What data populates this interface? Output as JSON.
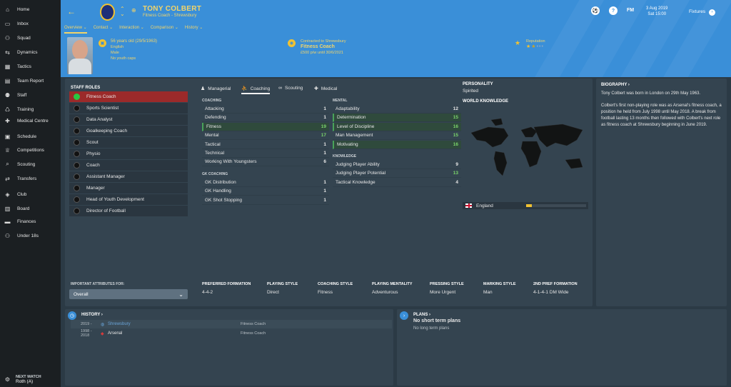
{
  "sidebar": {
    "items": [
      {
        "label": "Home",
        "icon": "home-icon",
        "glyph": "⌂"
      },
      {
        "label": "Inbox",
        "icon": "inbox-icon",
        "glyph": "▭"
      },
      {
        "label": "Squad",
        "icon": "squad-icon",
        "glyph": "⚇"
      },
      {
        "label": "Dynamics",
        "icon": "dynamics-icon",
        "glyph": "⇆"
      },
      {
        "label": "Tactics",
        "icon": "tactics-icon",
        "glyph": "▦"
      },
      {
        "label": "Team Report",
        "icon": "team-report-icon",
        "glyph": "▤"
      },
      {
        "label": "Staff",
        "icon": "staff-icon",
        "glyph": "⚉"
      },
      {
        "label": "Training",
        "icon": "training-icon",
        "glyph": "♺"
      },
      {
        "label": "Medical Centre",
        "icon": "medical-icon",
        "glyph": "✚"
      },
      {
        "label": "Schedule",
        "icon": "schedule-icon",
        "glyph": "▣"
      },
      {
        "label": "Competitions",
        "icon": "trophy-icon",
        "glyph": "♕"
      },
      {
        "label": "Scouting",
        "icon": "scouting-icon",
        "glyph": "⌕"
      },
      {
        "label": "Transfers",
        "icon": "transfers-icon",
        "glyph": "⇄"
      },
      {
        "label": "Club",
        "icon": "club-icon",
        "glyph": "◈"
      },
      {
        "label": "Board",
        "icon": "board-icon",
        "glyph": "▥"
      },
      {
        "label": "Finances",
        "icon": "finances-icon",
        "glyph": "▬"
      },
      {
        "label": "Under 18s",
        "icon": "under18-icon",
        "glyph": "⚇"
      }
    ],
    "next_match": {
      "label": "NEXT MATCH",
      "value": "Roth (A)"
    }
  },
  "header": {
    "name": "TONY COLBERT",
    "subtitle": "Fitness Coach - Shrewsbury",
    "date": "3 Aug 2019",
    "time": "Sat 15:00",
    "fm_label": "FM",
    "fixtures_label": "Fixtures",
    "tabs": [
      "Overview",
      "Contact",
      "Interaction",
      "Comparison",
      "History"
    ],
    "info": {
      "age": "56 years old (29/5/1963)",
      "nationality": "English",
      "gender": "Male",
      "youth": "No youth caps",
      "contract_line": "Contracted to Shrewsbury",
      "contract_role": "Fitness Coach",
      "wage": "£500 p/w until 30/6/2021",
      "reputation_label": "Reputation",
      "reputation_stars": 1.5
    },
    "accent": "#f1d46a",
    "bg": "#3a8fd8"
  },
  "staff_roles": {
    "title": "STAFF ROLES",
    "items": [
      "Fitness Coach",
      "Sports Scientist",
      "Data Analyst",
      "Goalkeeping Coach",
      "Scout",
      "Physio",
      "Coach",
      "Assistant Manager",
      "Manager",
      "Head of Youth Development",
      "Director of Football"
    ],
    "important_label": "IMPORTANT ATTRIBUTES FOR:",
    "select_value": "Overall"
  },
  "attr_tabs": [
    "Managerial",
    "Coaching",
    "Scouting",
    "Medical"
  ],
  "attributes": {
    "coaching_label": "COACHING",
    "coaching": [
      {
        "name": "Attacking",
        "value": 1
      },
      {
        "name": "Defending",
        "value": 1
      },
      {
        "name": "Fitness",
        "value": 19,
        "hl": true
      },
      {
        "name": "Mental",
        "value": 17
      },
      {
        "name": "Tactical",
        "value": 1
      },
      {
        "name": "Technical",
        "value": 1
      },
      {
        "name": "Working With Youngsters",
        "value": 6
      }
    ],
    "gk_label": "GK COACHING",
    "gk": [
      {
        "name": "GK Distribution",
        "value": 1
      },
      {
        "name": "GK Handling",
        "value": 1
      },
      {
        "name": "GK Shot Stopping",
        "value": 1
      }
    ],
    "mental_label": "MENTAL",
    "mental": [
      {
        "name": "Adaptability",
        "value": 12
      },
      {
        "name": "Determination",
        "value": 15,
        "hl": true
      },
      {
        "name": "Level of Discipline",
        "value": 16,
        "hl": true
      },
      {
        "name": "Man Management",
        "value": 15
      },
      {
        "name": "Motivating",
        "value": 16,
        "hl": true
      }
    ],
    "knowledge_label": "KNOWLEDGE",
    "knowledge": [
      {
        "name": "Judging Player Ability",
        "value": 9
      },
      {
        "name": "Judging Player Potential",
        "value": 13
      },
      {
        "name": "Tactical Knowledge",
        "value": 4
      }
    ]
  },
  "personality": {
    "label": "PERSONALITY",
    "value": "Spirited"
  },
  "world": {
    "label": "WORLD KNOWLEDGE",
    "country": "England",
    "level": 0.05
  },
  "style_strip": [
    {
      "k": "PREFERRED FORMATION",
      "v": "4-4-2"
    },
    {
      "k": "PLAYING STYLE",
      "v": "Direct"
    },
    {
      "k": "COACHING STYLE",
      "v": "Fitness"
    },
    {
      "k": "PLAYING MENTALITY",
      "v": "Adventurous"
    },
    {
      "k": "PRESSING STYLE",
      "v": "More Urgent"
    },
    {
      "k": "MARKING STYLE",
      "v": "Man"
    },
    {
      "k": "2ND PREF FORMATION",
      "v": "4-1-4-1 DM Wide"
    }
  ],
  "biography": {
    "title": "BIOGRAPHY",
    "p1": "Tony Colbert was born in London on 29th May 1963.",
    "p2": "Colbert's first non-playing role was as Arsenal's fitness coach, a position he held from July 1998 until May 2018. A break from football lasting 13 months then followed with Colbert's next role as fitness coach at Shrewsbury beginning in June 2019."
  },
  "history": {
    "title": "HISTORY",
    "rows": [
      {
        "years": "2019 -",
        "club": "Shrewsbury",
        "role": "Fitness Coach"
      },
      {
        "years": "1998 - 2018",
        "club": "Arsenal",
        "role": "Fitness Coach"
      }
    ]
  },
  "plans": {
    "title": "PLANS",
    "short": "No short term plans",
    "long": "No long term plans"
  }
}
